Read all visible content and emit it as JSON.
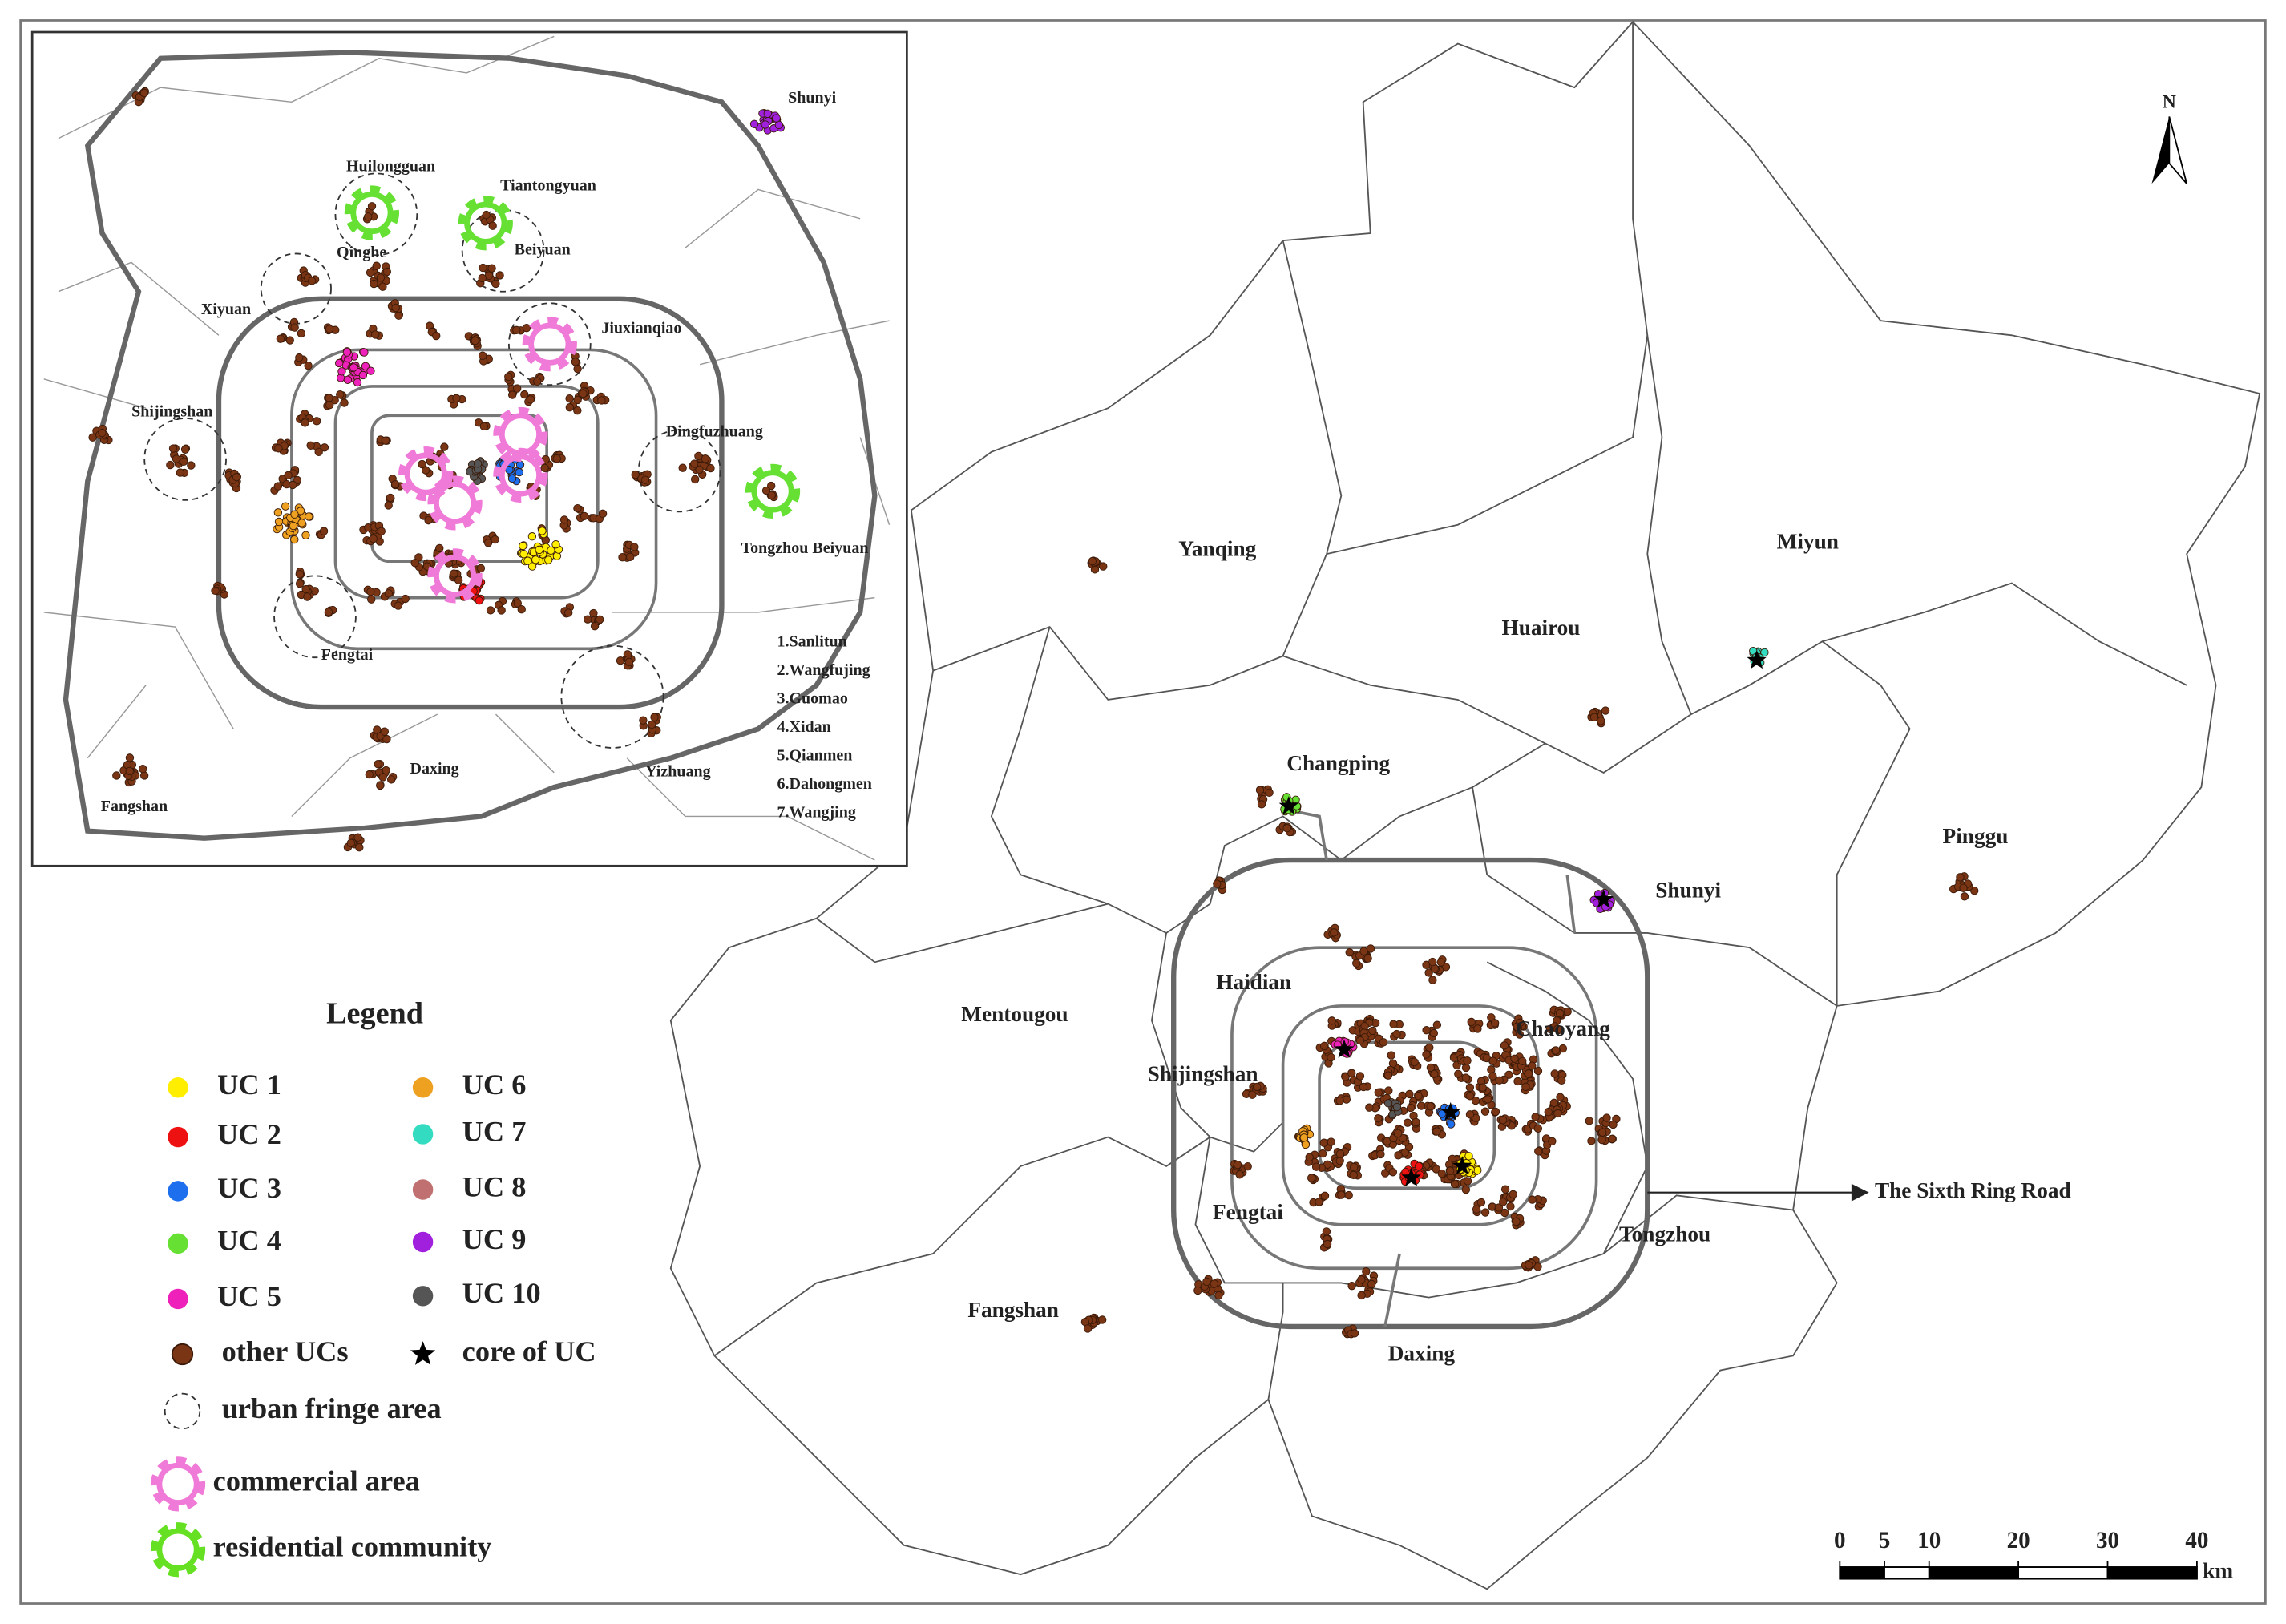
{
  "map": {
    "north": "N",
    "districts": [
      "Yanqing",
      "Miyun",
      "Huairou",
      "Changping",
      "Pinggu",
      "Shunyi",
      "Mentougou",
      "Haidian",
      "Chaoyang",
      "Shijingshan",
      "Fengtai",
      "Tongzhou",
      "Fangshan",
      "Daxing"
    ],
    "ring_road_label": "The Sixth Ring Road",
    "scale_bar": {
      "ticks": [
        0,
        5,
        10,
        20,
        30,
        40
      ],
      "unit": "km"
    }
  },
  "inset": {
    "places": [
      "Shunyi",
      "Huilongguan",
      "Tiantongyuan",
      "Qinghe",
      "Beiyuan",
      "Xiyuan",
      "Jiuxianqiao",
      "Shijingshan",
      "Dingfuzhuang",
      "Tongzhou Beiyuan",
      "Fengtai",
      "Daxing",
      "Yizhuang",
      "Fangshan"
    ],
    "commercial_areas": [
      "1.Sanlitun",
      "2.Wangfujing",
      "3.Guomao",
      "4.Xidan",
      "5.Qianmen",
      "6.Dahongmen",
      "7.Wangjing"
    ]
  },
  "legend": {
    "title": "Legend",
    "items": [
      {
        "label": "UC 1",
        "color": "#ffee00",
        "symbol": "dot"
      },
      {
        "label": "UC 2",
        "color": "#ee1111",
        "symbol": "dot"
      },
      {
        "label": "UC 3",
        "color": "#1e6fee",
        "symbol": "dot"
      },
      {
        "label": "UC 4",
        "color": "#66e033",
        "symbol": "dot"
      },
      {
        "label": "UC 5",
        "color": "#ee22bb",
        "symbol": "dot"
      },
      {
        "label": "UC 6",
        "color": "#eea020",
        "symbol": "dot"
      },
      {
        "label": "UC 7",
        "color": "#33dcc0",
        "symbol": "dot"
      },
      {
        "label": "UC 8",
        "color": "#c07070",
        "symbol": "dot"
      },
      {
        "label": "UC 9",
        "color": "#a020dd",
        "symbol": "dot"
      },
      {
        "label": "UC 10",
        "color": "#555555",
        "symbol": "dot"
      },
      {
        "label": "other UCs",
        "color": "#7a3515",
        "symbol": "dot"
      },
      {
        "label": "core of UC",
        "color": "#000000",
        "symbol": "star"
      },
      {
        "label": "urban fringe area",
        "color": "#333333",
        "symbol": "circle"
      },
      {
        "label": "commercial area",
        "color": "#f07ad8",
        "symbol": "gear"
      },
      {
        "label": "residential community",
        "color": "#66e022",
        "symbol": "gear"
      }
    ]
  }
}
